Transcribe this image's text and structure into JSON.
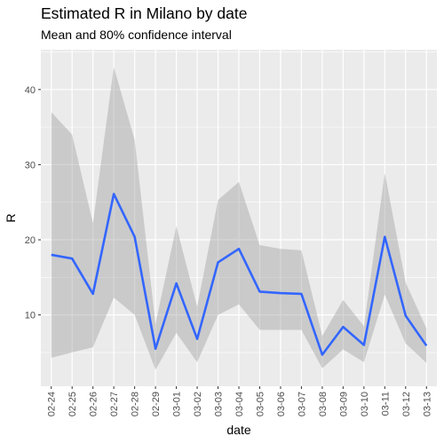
{
  "chart_data": {
    "type": "line",
    "title": "Estimated R in Milano by date",
    "subtitle": "Mean and 80% confidence interval",
    "xlabel": "date",
    "ylabel": "R",
    "categories": [
      "02-24",
      "02-25",
      "02-26",
      "02-27",
      "02-28",
      "02-29",
      "03-01",
      "03-02",
      "03-03",
      "03-04",
      "03-05",
      "03-06",
      "03-07",
      "03-08",
      "03-09",
      "03-10",
      "03-11",
      "03-12",
      "03-13"
    ],
    "series": [
      {
        "values": [
          18.0,
          17.5,
          12.8,
          26.1,
          20.4,
          5.5,
          14.2,
          6.8,
          17.0,
          18.8,
          13.1,
          12.9,
          12.8,
          4.7,
          8.4,
          6.0,
          20.4,
          9.9,
          5.9
        ],
        "lower": [
          4.3,
          5.0,
          5.7,
          12.3,
          10.0,
          2.7,
          7.6,
          3.7,
          10.0,
          11.4,
          8.0,
          8.0,
          8.0,
          2.9,
          5.4,
          3.7,
          12.7,
          6.2,
          3.6
        ],
        "upper": [
          37.0,
          34.0,
          22.2,
          43.0,
          33.3,
          8.8,
          21.8,
          11.1,
          25.3,
          27.7,
          19.3,
          18.8,
          18.6,
          7.2,
          12.0,
          8.5,
          28.9,
          14.3,
          8.2
        ]
      }
    ],
    "y_ticks": [
      10,
      20,
      30,
      40
    ],
    "ylim": [
      0.5,
      45.3
    ],
    "grid": true,
    "colors": {
      "line": "#3366ff",
      "ribbon": "#999999",
      "panel": "#ebebeb",
      "grid": "#ffffff"
    }
  }
}
